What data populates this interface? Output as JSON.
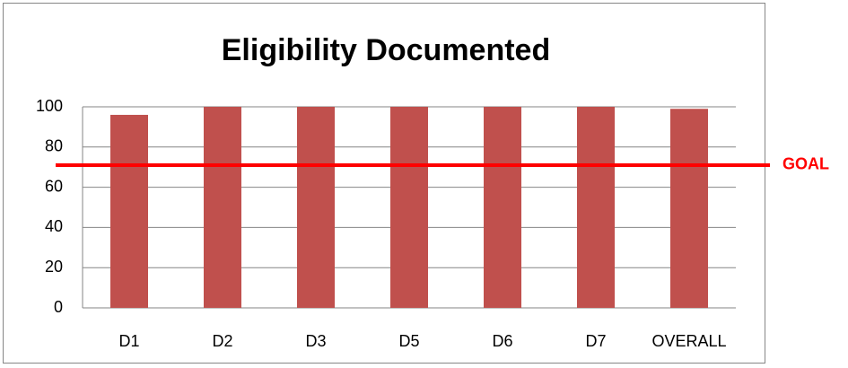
{
  "chart_data": {
    "type": "bar",
    "title": "Eligibility Documented",
    "categories": [
      "D1",
      "D2",
      "D3",
      "D5",
      "D6",
      "D7",
      "OVERALL"
    ],
    "values": [
      96,
      100,
      100,
      100,
      100,
      100,
      99
    ],
    "color": "#c0504d",
    "ylim": [
      0,
      100
    ],
    "yticks": [
      0,
      20,
      40,
      60,
      80,
      100
    ],
    "grid": true,
    "goal": {
      "value": 71,
      "label": "GOAL",
      "color": "#ff0000"
    }
  }
}
